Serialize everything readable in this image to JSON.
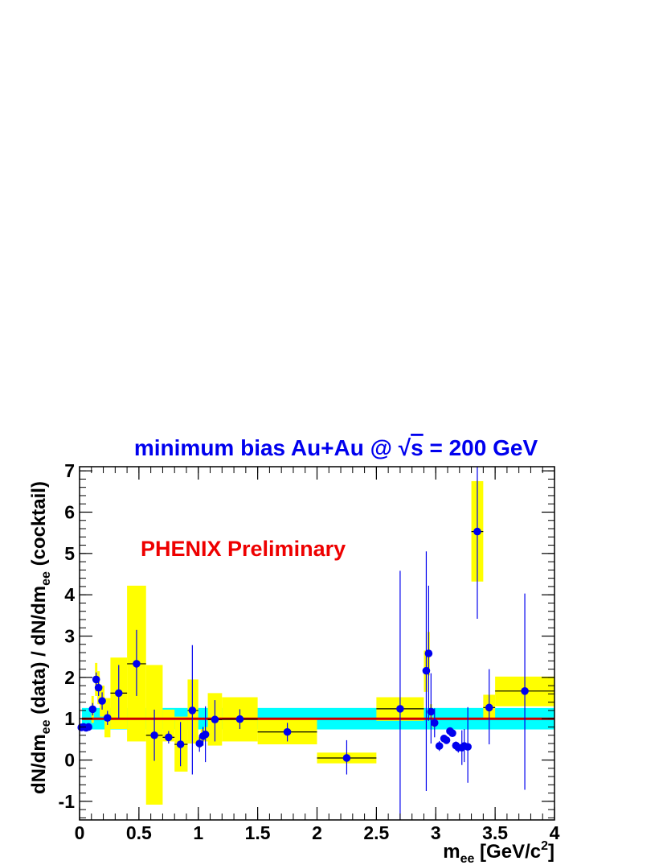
{
  "chart_data": {
    "type": "scatter",
    "title": "minimum bias Au+Au @ √s = 200 GeV",
    "title_parts": {
      "before_sqrt": "minimum bias Au+Au @ ",
      "radical": "√",
      "radicand": "s",
      "after": " = 200 GeV"
    },
    "xlabel": "m_ee [GeV/c^2]",
    "xlabel_parts": {
      "base": "m",
      "sub": "ee",
      "bracket": " [GeV/c",
      "sup": "2",
      "close": "]"
    },
    "ylabel": "dN/dm_ee (data) / dN/dm_ee (cocktail)",
    "ylabel_parts": {
      "p1": "dN/dm",
      "s1": "ee",
      "p2": " (data) / dN/dm",
      "s2": "ee",
      "p3": " (cocktail)"
    },
    "annotation": "PHENIX Preliminary",
    "xlim": [
      0,
      4
    ],
    "ylim": [
      -1.45,
      7.1
    ],
    "x_ticks": [
      0,
      0.5,
      1,
      1.5,
      2,
      2.5,
      3,
      3.5,
      4
    ],
    "x_tick_labels": [
      "0",
      "0.5",
      "1",
      "1.5",
      "2",
      "2.5",
      "3",
      "3.5",
      "4"
    ],
    "y_ticks": [
      -1,
      0,
      1,
      2,
      3,
      4,
      5,
      6,
      7
    ],
    "y_tick_labels": [
      "-1",
      "0",
      "1",
      "2",
      "3",
      "4",
      "5",
      "6",
      "7"
    ],
    "grid": false,
    "legend": "none",
    "colors": {
      "points": "#0000ee",
      "systematics": "#ffff00",
      "normalization_band": "#00ffff",
      "reference_line": "#cc0000",
      "title": "#0000ee",
      "annotation": "#ee0000"
    },
    "reference_line": 1.0,
    "normalization_band": {
      "x": [
        0.02,
        4.0
      ],
      "y": [
        0.74,
        1.26
      ]
    },
    "points": [
      {
        "x": 0.015,
        "y": 0.79,
        "ylo": 0.74,
        "yhi": 0.84,
        "xlo": 0.01,
        "xhi": 0.02,
        "sys": [
          0.72,
          0.86
        ]
      },
      {
        "x": 0.035,
        "y": 0.8,
        "ylo": 0.75,
        "yhi": 0.85,
        "xlo": 0.03,
        "xhi": 0.04,
        "sys": [
          0.73,
          0.87
        ]
      },
      {
        "x": 0.055,
        "y": 0.78,
        "ylo": 0.73,
        "yhi": 0.83,
        "xlo": 0.05,
        "xhi": 0.06,
        "sys": [
          0.7,
          0.86
        ]
      },
      {
        "x": 0.075,
        "y": 0.8,
        "ylo": 0.74,
        "yhi": 0.86,
        "xlo": 0.07,
        "xhi": 0.08,
        "sys": [
          0.72,
          0.88
        ]
      },
      {
        "x": 0.11,
        "y": 1.23,
        "ylo": 1.08,
        "yhi": 1.38,
        "xlo": 0.1,
        "xhi": 0.12,
        "sys": [
          0.9,
          1.55
        ]
      },
      {
        "x": 0.14,
        "y": 1.95,
        "ylo": 1.78,
        "yhi": 2.12,
        "xlo": 0.13,
        "xhi": 0.15,
        "sys": [
          1.55,
          2.35
        ]
      },
      {
        "x": 0.16,
        "y": 1.75,
        "ylo": 1.55,
        "yhi": 1.95,
        "xlo": 0.15,
        "xhi": 0.17,
        "sys": [
          1.35,
          2.15
        ]
      },
      {
        "x": 0.19,
        "y": 1.43,
        "ylo": 1.22,
        "yhi": 1.64,
        "xlo": 0.17,
        "xhi": 0.21,
        "sys": [
          1.05,
          1.8
        ]
      },
      {
        "x": 0.235,
        "y": 1.02,
        "ylo": 0.85,
        "yhi": 1.19,
        "xlo": 0.21,
        "xhi": 0.26,
        "sys": [
          0.55,
          1.5
        ]
      },
      {
        "x": 0.33,
        "y": 1.62,
        "ylo": 1.0,
        "yhi": 2.3,
        "xlo": 0.26,
        "xhi": 0.4,
        "sys": [
          0.75,
          2.48
        ]
      },
      {
        "x": 0.48,
        "y": 2.33,
        "ylo": 1.55,
        "yhi": 3.15,
        "xlo": 0.4,
        "xhi": 0.56,
        "sys": [
          0.45,
          4.22
        ]
      },
      {
        "x": 0.63,
        "y": 0.6,
        "ylo": -0.02,
        "yhi": 1.22,
        "xlo": 0.56,
        "xhi": 0.7,
        "sys": [
          -1.08,
          2.3
        ]
      },
      {
        "x": 0.75,
        "y": 0.55,
        "ylo": 0.4,
        "yhi": 0.7,
        "xlo": 0.7,
        "xhi": 0.8,
        "sys": [
          0.45,
          1.22
        ]
      },
      {
        "x": 0.85,
        "y": 0.38,
        "ylo": -0.15,
        "yhi": 0.92,
        "xlo": 0.8,
        "xhi": 0.91,
        "sys": [
          -0.28,
          1.05
        ]
      },
      {
        "x": 0.95,
        "y": 1.2,
        "ylo": -0.35,
        "yhi": 2.78,
        "xlo": 0.91,
        "xhi": 1.0,
        "sys": [
          0.4,
          1.95
        ]
      },
      {
        "x": 1.01,
        "y": 0.4,
        "ylo": 0.2,
        "yhi": 0.6,
        "xlo": 1.0,
        "xhi": 1.02,
        "sys": [
          0.3,
          0.55
        ]
      },
      {
        "x": 1.04,
        "y": 0.58,
        "ylo": 0.35,
        "yhi": 0.8,
        "xlo": 1.02,
        "xhi": 1.05,
        "sys": [
          0.45,
          0.75
        ]
      },
      {
        "x": 1.06,
        "y": 0.62,
        "ylo": -0.05,
        "yhi": 1.3,
        "xlo": 1.05,
        "xhi": 1.08,
        "sys": [
          0.45,
          0.8
        ]
      },
      {
        "x": 1.14,
        "y": 0.98,
        "ylo": 0.45,
        "yhi": 1.45,
        "xlo": 1.08,
        "xhi": 1.2,
        "sys": [
          0.35,
          1.62
        ]
      },
      {
        "x": 1.35,
        "y": 0.99,
        "ylo": 0.75,
        "yhi": 1.23,
        "xlo": 1.2,
        "xhi": 1.5,
        "sys": [
          0.45,
          1.52
        ]
      },
      {
        "x": 1.75,
        "y": 0.68,
        "ylo": 0.45,
        "yhi": 0.9,
        "xlo": 1.5,
        "xhi": 2.0,
        "sys": [
          0.38,
          0.98
        ]
      },
      {
        "x": 2.25,
        "y": 0.05,
        "ylo": -0.35,
        "yhi": 0.48,
        "xlo": 2.0,
        "xhi": 2.5,
        "sys": [
          -0.08,
          0.18
        ]
      },
      {
        "x": 2.7,
        "y": 1.24,
        "ylo": -1.45,
        "yhi": 4.58,
        "xlo": 2.5,
        "xhi": 2.9,
        "sys": [
          0.95,
          1.52
        ]
      },
      {
        "x": 2.92,
        "y": 2.16,
        "ylo": -0.75,
        "yhi": 5.05,
        "xlo": 2.9,
        "xhi": 2.93,
        "sys": [
          1.65,
          2.65
        ]
      },
      {
        "x": 2.94,
        "y": 2.58,
        "ylo": 0.95,
        "yhi": 4.22,
        "xlo": 2.93,
        "xhi": 2.95,
        "sys": [
          2.05,
          3.1
        ]
      },
      {
        "x": 2.96,
        "y": 1.17,
        "ylo": 0.4,
        "yhi": 2.1,
        "xlo": 2.95,
        "xhi": 2.97,
        "sys": [
          1.0,
          1.35
        ]
      },
      {
        "x": 2.99,
        "y": 0.9,
        "ylo": 0.55,
        "yhi": 1.25,
        "xlo": 2.97,
        "xhi": 3.0,
        "sys": [
          0.8,
          1.0
        ]
      },
      {
        "x": 3.03,
        "y": 0.34,
        "ylo": 0.22,
        "yhi": 0.46,
        "xlo": 3.01,
        "xhi": 3.05,
        "sys": [
          0.3,
          0.38
        ]
      },
      {
        "x": 3.07,
        "y": 0.52,
        "ylo": 0.45,
        "yhi": 0.6,
        "xlo": 3.05,
        "xhi": 3.08,
        "sys": [
          0.48,
          0.56
        ]
      },
      {
        "x": 3.09,
        "y": 0.48,
        "ylo": 0.42,
        "yhi": 0.55,
        "xlo": 3.08,
        "xhi": 3.1,
        "sys": [
          0.45,
          0.52
        ]
      },
      {
        "x": 3.12,
        "y": 0.7,
        "ylo": 0.63,
        "yhi": 0.78,
        "xlo": 3.11,
        "xhi": 3.13,
        "sys": [
          0.66,
          0.74
        ]
      },
      {
        "x": 3.14,
        "y": 0.65,
        "ylo": 0.58,
        "yhi": 0.72,
        "xlo": 3.13,
        "xhi": 3.15,
        "sys": [
          0.62,
          0.69
        ]
      },
      {
        "x": 3.17,
        "y": 0.35,
        "ylo": 0.25,
        "yhi": 0.45,
        "xlo": 3.16,
        "xhi": 3.18,
        "sys": [
          0.31,
          0.39
        ]
      },
      {
        "x": 3.19,
        "y": 0.3,
        "ylo": 0.18,
        "yhi": 0.42,
        "xlo": 3.18,
        "xhi": 3.2,
        "sys": [
          0.26,
          0.34
        ]
      },
      {
        "x": 3.22,
        "y": 0.3,
        "ylo": -0.12,
        "yhi": 0.72,
        "xlo": 3.21,
        "xhi": 3.23,
        "sys": [
          0.24,
          0.36
        ]
      },
      {
        "x": 3.24,
        "y": 0.34,
        "ylo": -0.05,
        "yhi": 0.75,
        "xlo": 3.23,
        "xhi": 3.25,
        "sys": [
          0.28,
          0.4
        ]
      },
      {
        "x": 3.27,
        "y": 0.32,
        "ylo": -0.55,
        "yhi": 1.28,
        "xlo": 3.26,
        "xhi": 3.28,
        "sys": [
          0.25,
          0.4
        ]
      },
      {
        "x": 3.35,
        "y": 5.53,
        "ylo": 3.42,
        "yhi": 7.1,
        "xlo": 3.3,
        "xhi": 3.4,
        "sys": [
          4.32,
          6.75
        ]
      },
      {
        "x": 3.45,
        "y": 1.27,
        "ylo": 0.38,
        "yhi": 2.2,
        "xlo": 3.4,
        "xhi": 3.5,
        "sys": [
          0.98,
          1.58
        ]
      },
      {
        "x": 3.75,
        "y": 1.67,
        "ylo": -0.72,
        "yhi": 4.03,
        "xlo": 3.5,
        "xhi": 4.0,
        "sys": [
          1.3,
          2.02
        ]
      }
    ]
  }
}
